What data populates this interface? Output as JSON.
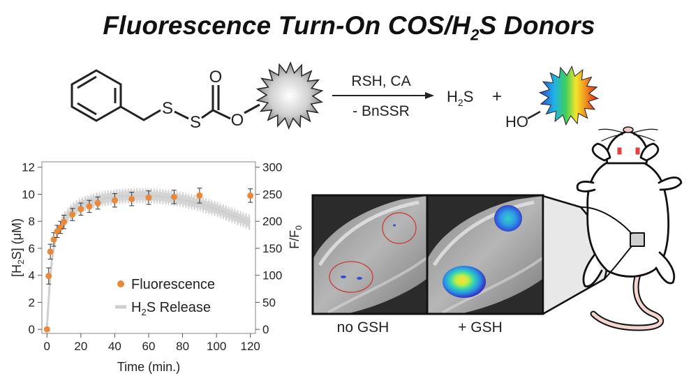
{
  "title": {
    "prefix": "Fluorescence Turn-On COS/H",
    "sub": "2",
    "suffix": "S Donors"
  },
  "scheme": {
    "atoms": {
      "S1": "S",
      "S2": "S",
      "O_carbonyl": "O",
      "O_ester": "O"
    },
    "conditions_top": "RSH, CA",
    "conditions_bottom": "- BnSSR",
    "product_h2s": {
      "main": "H",
      "sub": "2",
      "tail": "S"
    },
    "plus": "+",
    "product_ho": "HO"
  },
  "chart_data": {
    "type": "scatter",
    "xlabel": "Time (min.)",
    "ylabel_left": {
      "main": "[H",
      "sub": "2",
      "tail": "S] (μM)"
    },
    "ylabel_right": {
      "main": "F/F",
      "sub": "0"
    },
    "xlim": [
      -3,
      123
    ],
    "ylim_left": [
      -0.3,
      12.4
    ],
    "ylim_right": [
      -7.5,
      310
    ],
    "x_ticks": [
      "0",
      "20",
      "40",
      "60",
      "80",
      "100",
      "120"
    ],
    "y_ticks_left": [
      "0",
      "2",
      "4",
      "6",
      "8",
      "10",
      "12"
    ],
    "y_ticks_right": [
      "0",
      "50",
      "100",
      "150",
      "200",
      "250",
      "300"
    ],
    "series": [
      {
        "name": "Fluorescence",
        "color": "#e8893b",
        "axis": "left",
        "x": [
          0,
          1,
          2,
          4,
          6,
          8,
          10,
          15,
          20,
          25,
          30,
          40,
          50,
          60,
          75,
          90,
          120
        ],
        "y": [
          0.0,
          3.95,
          5.75,
          6.65,
          7.25,
          7.55,
          7.95,
          8.5,
          8.9,
          9.1,
          9.35,
          9.55,
          9.65,
          9.75,
          9.8,
          9.9,
          9.9
        ],
        "err": [
          0.0,
          0.6,
          0.55,
          0.5,
          0.45,
          0.45,
          0.5,
          0.45,
          0.45,
          0.45,
          0.45,
          0.5,
          0.5,
          0.5,
          0.5,
          0.55,
          0.5
        ]
      },
      {
        "name": "H₂S Release",
        "name_parts": {
          "main": "H",
          "sub": "2",
          "tail": "S Release"
        },
        "color": "#cfcfcf",
        "axis": "left",
        "x": [
          0,
          1,
          2,
          3,
          4,
          5,
          7,
          10,
          15,
          20,
          30,
          40,
          50,
          60,
          70,
          80,
          90,
          100,
          110,
          120
        ],
        "y": [
          0.2,
          2.2,
          4.0,
          5.2,
          6.0,
          6.6,
          7.4,
          8.1,
          8.8,
          9.2,
          9.6,
          9.8,
          9.9,
          9.9,
          9.8,
          9.6,
          9.3,
          8.9,
          8.4,
          7.9
        ]
      }
    ],
    "legend": "bottom-left",
    "grid": false
  },
  "imaging": {
    "panel_left_label": "no GSH",
    "panel_right_label": "+ GSH"
  },
  "colors": {
    "marker": "#e8893b",
    "release_band": "#cfcfcf",
    "roi_circle": "#c83a3a",
    "mouse_marks": "#e04040"
  }
}
